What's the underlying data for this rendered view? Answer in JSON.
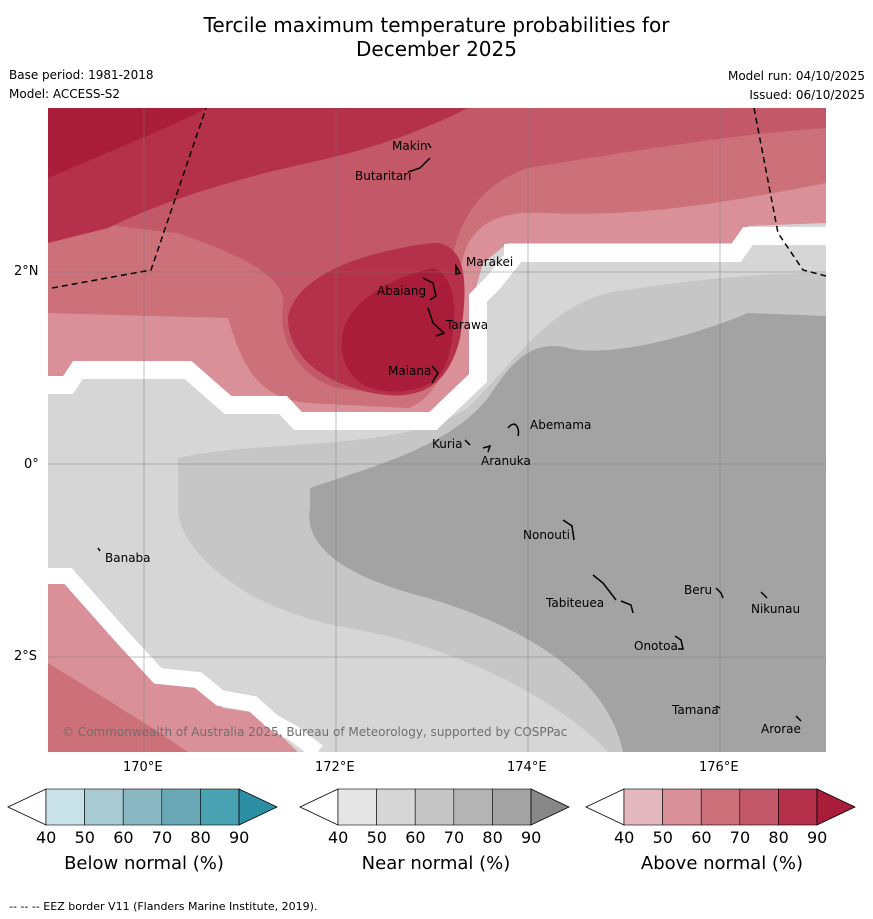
{
  "title_line1": "Tercile maximum temperature probabilities for",
  "title_line2": "December 2025",
  "base_period": "Base period: 1981-2018",
  "model": "Model: ACCESS-S2",
  "model_run": "Model run: 04/10/2025",
  "issued": "Issued: 06/10/2025",
  "axes": {
    "lon_labels": [
      "170°E",
      "172°E",
      "174°E",
      "176°E"
    ],
    "lat_labels": [
      "2°N",
      "0°",
      "2°S"
    ]
  },
  "places": [
    "Makin",
    "Butaritari",
    "Marakei",
    "Abaiang",
    "Tarawa",
    "Maiana",
    "Abemama",
    "Kuria",
    "Aranuka",
    "Banaba",
    "Nonouti",
    "Tabiteuea",
    "Beru",
    "Nikunau",
    "Onotoa",
    "Tamana",
    "Arorae"
  ],
  "copyright": "© Commonwealth of Australia 2025, Bureau of Meteorology, supported by COSPPac",
  "colorbars": [
    {
      "label": "Below normal (%)",
      "ticks": [
        "40",
        "50",
        "60",
        "70",
        "80",
        "90"
      ],
      "colors": [
        "#ffffff",
        "#c9e1e8",
        "#a8cbd3",
        "#8ab7c2",
        "#6aa8b8",
        "#4aa3b3",
        "#2b8ea3"
      ]
    },
    {
      "label": "Near normal (%)",
      "ticks": [
        "40",
        "50",
        "60",
        "70",
        "80",
        "90"
      ],
      "colors": [
        "#ffffff",
        "#e5e5e5",
        "#d6d6d6",
        "#c6c6c6",
        "#b4b4b4",
        "#a3a3a3",
        "#878787"
      ]
    },
    {
      "label": "Above normal (%)",
      "ticks": [
        "40",
        "50",
        "60",
        "70",
        "80",
        "90"
      ],
      "colors": [
        "#ffffff",
        "#e3b8be",
        "#d99099",
        "#cc7079",
        "#c25868",
        "#b5304a",
        "#a91c3a"
      ]
    }
  ],
  "footer": "--  --  -- EEZ border V11 (Flanders Marine Institute, 2019)."
}
